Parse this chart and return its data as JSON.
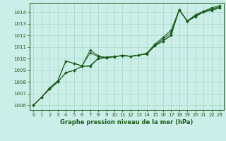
{
  "title": "Graphe pression niveau de la mer (hPa)",
  "bg_color": "#cceee8",
  "grid_color": "#aaddcc",
  "line_color": "#1a5c1a",
  "marker_color": "#1a5c1a",
  "xlim": [
    -0.5,
    23.5
  ],
  "ylim": [
    1005.6,
    1014.8
  ],
  "yticks": [
    1006,
    1007,
    1008,
    1009,
    1010,
    1011,
    1012,
    1013,
    1014
  ],
  "xticks": [
    0,
    1,
    2,
    3,
    4,
    5,
    6,
    7,
    8,
    9,
    10,
    11,
    12,
    13,
    14,
    15,
    16,
    17,
    18,
    19,
    20,
    21,
    22,
    23
  ],
  "series": [
    [
      1006.0,
      1006.7,
      1007.4,
      1008.0,
      1008.8,
      1009.0,
      1009.35,
      1009.35,
      1010.0,
      1010.1,
      1010.2,
      1010.25,
      1010.2,
      1010.3,
      1010.4,
      1011.1,
      1011.5,
      1012.0,
      1014.2,
      1013.2,
      1013.6,
      1014.0,
      1014.15,
      1014.35
    ],
    [
      1006.0,
      1006.7,
      1007.4,
      1008.0,
      1008.8,
      1009.0,
      1009.35,
      1009.4,
      1010.05,
      1010.15,
      1010.2,
      1010.28,
      1010.22,
      1010.3,
      1010.42,
      1011.15,
      1011.55,
      1012.05,
      1014.2,
      1013.25,
      1013.65,
      1014.05,
      1014.2,
      1014.4
    ],
    [
      1006.0,
      1006.7,
      1007.5,
      1008.1,
      1009.8,
      1009.6,
      1009.4,
      1010.75,
      1010.25,
      1010.1,
      1010.15,
      1010.28,
      1010.22,
      1010.3,
      1010.48,
      1011.25,
      1011.85,
      1012.45,
      1014.2,
      1013.25,
      1013.78,
      1014.08,
      1014.38,
      1014.55
    ],
    [
      1006.0,
      1006.7,
      1007.5,
      1008.1,
      1009.8,
      1009.6,
      1009.38,
      1010.5,
      1010.2,
      1010.08,
      1010.18,
      1010.28,
      1010.22,
      1010.3,
      1010.46,
      1011.2,
      1011.7,
      1012.25,
      1014.2,
      1013.25,
      1013.72,
      1014.05,
      1014.28,
      1014.48
    ]
  ]
}
